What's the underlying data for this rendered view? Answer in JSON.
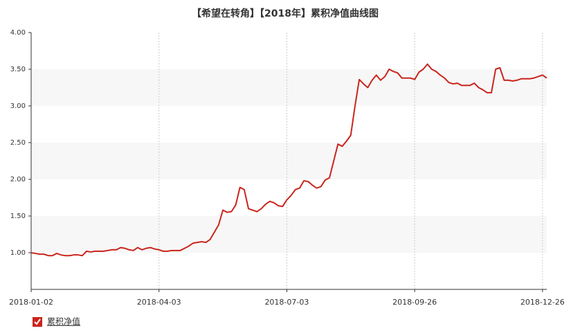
{
  "chart_data": {
    "type": "line",
    "title": "【希望在转角】【2018年】累积净值曲线图",
    "categories": [
      "2018-01-02",
      null,
      null,
      null,
      null,
      null,
      null,
      null,
      null,
      null,
      null,
      null,
      null,
      null,
      null,
      null,
      null,
      null,
      null,
      null,
      null,
      null,
      null,
      null,
      null,
      null,
      null,
      null,
      null,
      null,
      "2018-04-03",
      null,
      null,
      null,
      null,
      null,
      null,
      null,
      null,
      null,
      null,
      null,
      null,
      null,
      null,
      null,
      null,
      null,
      null,
      null,
      null,
      null,
      null,
      null,
      null,
      null,
      null,
      null,
      null,
      null,
      "2018-07-03",
      null,
      null,
      null,
      null,
      null,
      null,
      null,
      null,
      null,
      null,
      null,
      null,
      null,
      null,
      null,
      null,
      null,
      null,
      null,
      null,
      null,
      null,
      null,
      null,
      null,
      null,
      null,
      null,
      null,
      "2018-09-26",
      null,
      null,
      null,
      null,
      null,
      null,
      null,
      null,
      null,
      null,
      null,
      null,
      null,
      null,
      null,
      null,
      null,
      null,
      null,
      null,
      null,
      null,
      null,
      null,
      null,
      null,
      null,
      null,
      null,
      "2018-12-26",
      null
    ],
    "series": [
      {
        "name": "累积净值",
        "color": "#c9251c",
        "values": [
          1.0,
          0.99,
          0.98,
          0.98,
          0.96,
          0.96,
          0.99,
          0.97,
          0.96,
          0.96,
          0.97,
          0.97,
          0.96,
          1.02,
          1.01,
          1.02,
          1.02,
          1.02,
          1.03,
          1.04,
          1.04,
          1.07,
          1.06,
          1.04,
          1.03,
          1.07,
          1.04,
          1.06,
          1.07,
          1.05,
          1.04,
          1.02,
          1.02,
          1.03,
          1.03,
          1.03,
          1.06,
          1.09,
          1.13,
          1.14,
          1.15,
          1.14,
          1.18,
          1.28,
          1.38,
          1.58,
          1.55,
          1.56,
          1.65,
          1.89,
          1.86,
          1.6,
          1.58,
          1.56,
          1.6,
          1.66,
          1.7,
          1.68,
          1.64,
          1.63,
          1.72,
          1.78,
          1.86,
          1.88,
          1.98,
          1.97,
          1.92,
          1.88,
          1.9,
          1.99,
          2.02,
          2.25,
          2.48,
          2.45,
          2.52,
          2.6,
          3.0,
          3.36,
          3.3,
          3.25,
          3.35,
          3.42,
          3.35,
          3.4,
          3.5,
          3.47,
          3.45,
          3.38,
          3.38,
          3.38,
          3.36,
          3.46,
          3.5,
          3.57,
          3.5,
          3.47,
          3.42,
          3.38,
          3.32,
          3.3,
          3.31,
          3.28,
          3.28,
          3.28,
          3.31,
          3.25,
          3.22,
          3.18,
          3.18,
          3.5,
          3.52,
          3.35,
          3.35,
          3.34,
          3.35,
          3.37,
          3.37,
          3.37,
          3.38,
          3.4,
          3.42,
          3.38
        ]
      }
    ],
    "ylim": [
      0.5,
      4.0
    ],
    "yticks": [
      {
        "value": 1,
        "label": "1.00"
      },
      {
        "value": 1.5,
        "label": "1.50"
      },
      {
        "value": 2,
        "label": "2.00"
      },
      {
        "value": 2.5,
        "label": "2.50"
      },
      {
        "value": 3,
        "label": "3.00"
      },
      {
        "value": 3.5,
        "label": "3.50"
      },
      {
        "value": 4,
        "label": "4.00"
      }
    ],
    "grid": true,
    "legend": "bottom-left"
  }
}
